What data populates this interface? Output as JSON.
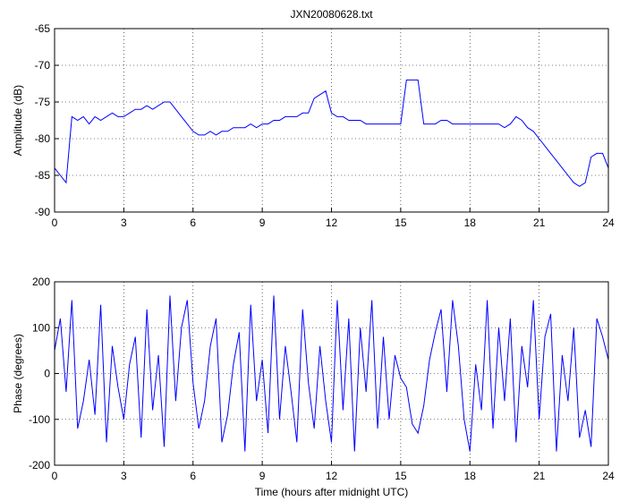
{
  "chart_data": [
    {
      "type": "line",
      "title": "JXN20080628.txt",
      "y_label": "Amplitude (dB)",
      "color": "#0000ff",
      "grid": true,
      "xlim": [
        0,
        24
      ],
      "xticks": [
        0,
        3,
        6,
        9,
        12,
        15,
        18,
        21,
        24
      ],
      "ylim": [
        -90,
        -65
      ],
      "yticks": [
        -90,
        -85,
        -80,
        -75,
        -70,
        -65
      ],
      "x": [
        0,
        0.25,
        0.5,
        0.75,
        1,
        1.25,
        1.5,
        1.75,
        2,
        2.25,
        2.5,
        2.75,
        3,
        3.25,
        3.5,
        3.75,
        4,
        4.25,
        4.5,
        4.75,
        5,
        5.25,
        5.5,
        5.75,
        6,
        6.25,
        6.5,
        6.75,
        7,
        7.25,
        7.5,
        7.75,
        8,
        8.25,
        8.5,
        8.75,
        9,
        9.25,
        9.5,
        9.75,
        10,
        10.25,
        10.5,
        10.75,
        11,
        11.25,
        11.5,
        11.75,
        12,
        12.25,
        12.5,
        12.75,
        13,
        13.25,
        13.5,
        13.75,
        14,
        14.25,
        14.5,
        14.75,
        15,
        15.25,
        15.5,
        15.75,
        16,
        16.25,
        16.5,
        16.75,
        17,
        17.25,
        17.5,
        17.75,
        18,
        18.25,
        18.5,
        18.75,
        19,
        19.25,
        19.5,
        19.75,
        20,
        20.25,
        20.5,
        20.75,
        21,
        21.25,
        21.5,
        21.75,
        22,
        22.25,
        22.5,
        22.75,
        23,
        23.25,
        23.5,
        23.75,
        24
      ],
      "values": [
        -84,
        -85,
        -86,
        -77,
        -77.5,
        -77,
        -78,
        -77,
        -77.5,
        -77,
        -76.5,
        -77,
        -77,
        -76.5,
        -76,
        -76,
        -75.5,
        -76,
        -75.5,
        -75,
        -75,
        -76,
        -77,
        -78,
        -79,
        -79.5,
        -79.5,
        -79,
        -79.5,
        -79,
        -79,
        -78.5,
        -78.5,
        -78.5,
        -78,
        -78.5,
        -78,
        -78,
        -77.5,
        -77.5,
        -77,
        -77,
        -77,
        -76.5,
        -76.5,
        -74.5,
        -74,
        -73.5,
        -76.5,
        -77,
        -77,
        -77.5,
        -77.5,
        -77.5,
        -78,
        -78,
        -78,
        -78,
        -78,
        -78,
        -78,
        -72,
        -72,
        -72,
        -78,
        -78,
        -78,
        -77.5,
        -77.5,
        -78,
        -78,
        -78,
        -78,
        -78,
        -78,
        -78,
        -78,
        -78,
        -78.5,
        -78,
        -77,
        -77.5,
        -78.5,
        -79,
        -80,
        -81,
        -82,
        -83,
        -84,
        -85,
        -86,
        -86.5,
        -86,
        -82.5,
        -82,
        -82,
        -84
      ]
    },
    {
      "type": "line",
      "y_label": "Phase (degrees)",
      "x_label": "Time (hours after midnight UTC)",
      "color": "#0000ff",
      "grid": true,
      "xlim": [
        0,
        24
      ],
      "xticks": [
        0,
        3,
        6,
        9,
        12,
        15,
        18,
        21,
        24
      ],
      "ylim": [
        -200,
        200
      ],
      "yticks": [
        -200,
        -100,
        0,
        100,
        200
      ],
      "x": [
        0,
        0.25,
        0.5,
        0.75,
        1,
        1.25,
        1.5,
        1.75,
        2,
        2.25,
        2.5,
        2.75,
        3,
        3.25,
        3.5,
        3.75,
        4,
        4.25,
        4.5,
        4.75,
        5,
        5.25,
        5.5,
        5.75,
        6,
        6.25,
        6.5,
        6.75,
        7,
        7.25,
        7.5,
        7.75,
        8,
        8.25,
        8.5,
        8.75,
        9,
        9.25,
        9.5,
        9.75,
        10,
        10.25,
        10.5,
        10.75,
        11,
        11.25,
        11.5,
        11.75,
        12,
        12.25,
        12.5,
        12.75,
        13,
        13.25,
        13.5,
        13.75,
        14,
        14.25,
        14.5,
        14.75,
        15,
        15.25,
        15.5,
        15.75,
        16,
        16.25,
        16.5,
        16.75,
        17,
        17.25,
        17.5,
        17.75,
        18,
        18.25,
        18.5,
        18.75,
        19,
        19.25,
        19.5,
        19.75,
        20,
        20.25,
        20.5,
        20.75,
        21,
        21.25,
        21.5,
        21.75,
        22,
        22.25,
        22.5,
        22.75,
        23,
        23.25,
        23.5,
        23.75,
        24
      ],
      "values": [
        50,
        120,
        -40,
        160,
        -120,
        -60,
        30,
        -90,
        150,
        -150,
        60,
        -30,
        -100,
        20,
        80,
        -140,
        140,
        -80,
        40,
        -160,
        170,
        -60,
        100,
        160,
        -20,
        -120,
        -60,
        60,
        120,
        -150,
        -90,
        20,
        90,
        -170,
        150,
        -60,
        30,
        -130,
        170,
        -100,
        60,
        -40,
        -150,
        140,
        -20,
        -120,
        60,
        -60,
        -150,
        160,
        -80,
        120,
        -170,
        100,
        -40,
        160,
        -120,
        80,
        -100,
        40,
        -10,
        -30,
        -110,
        -130,
        -70,
        30,
        90,
        140,
        -40,
        160,
        60,
        -100,
        -170,
        20,
        -80,
        160,
        -120,
        100,
        -60,
        120,
        -150,
        60,
        -30,
        160,
        -100,
        80,
        130,
        -170,
        40,
        -60,
        100,
        -140,
        -80,
        -160,
        120,
        80,
        30
      ]
    }
  ]
}
